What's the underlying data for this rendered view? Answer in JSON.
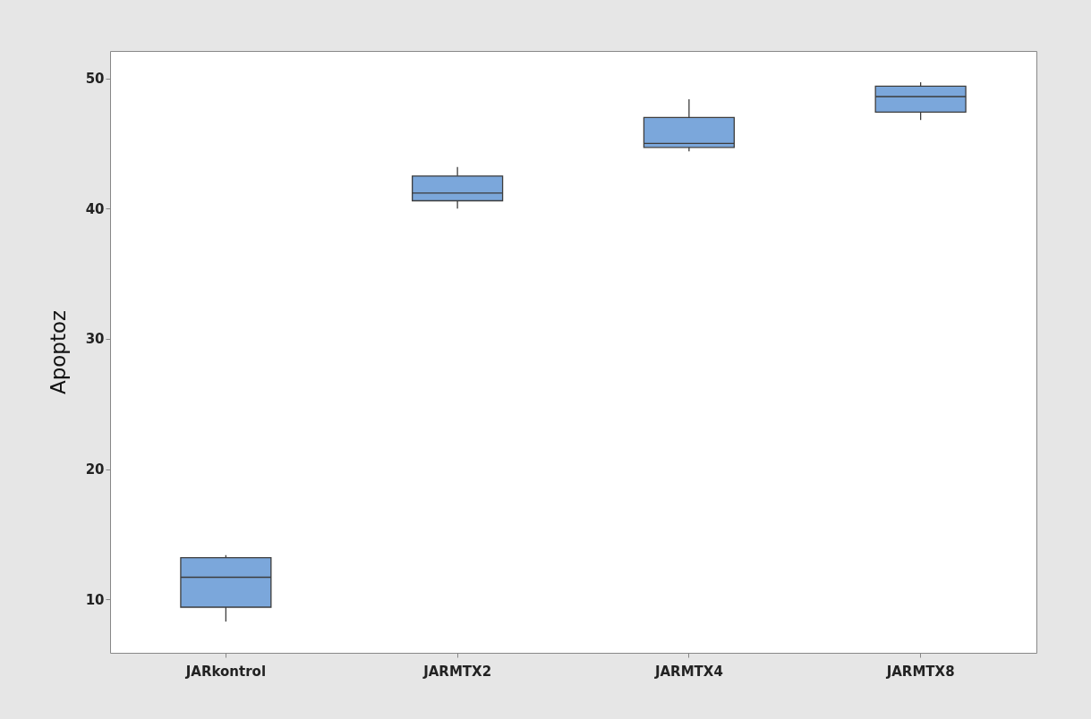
{
  "chart_data": {
    "type": "box",
    "ylabel": "Apoptoz",
    "categories": [
      "JARkontrol",
      "JARMTX2",
      "JARMTX4",
      "JARMTX8"
    ],
    "boxes": [
      {
        "low": 8.3,
        "q1": 9.4,
        "median": 11.7,
        "q3": 13.2,
        "high": 13.4
      },
      {
        "low": 40.0,
        "q1": 40.6,
        "median": 41.2,
        "q3": 42.5,
        "high": 43.2
      },
      {
        "low": 44.4,
        "q1": 44.7,
        "median": 45.0,
        "q3": 47.0,
        "high": 48.4
      },
      {
        "low": 46.8,
        "q1": 47.4,
        "median": 48.6,
        "q3": 49.4,
        "high": 49.7
      }
    ],
    "color": "#7ba7db",
    "ylim": [
      5.9,
      52.1
    ],
    "yticks": [
      10,
      20,
      30,
      40,
      50
    ],
    "grid": false
  }
}
